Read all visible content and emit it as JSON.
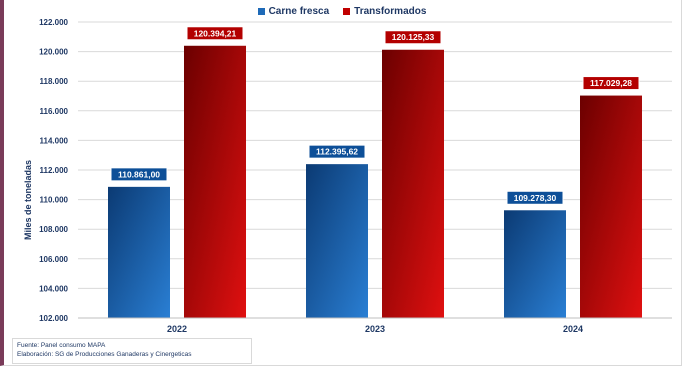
{
  "chart_data": {
    "type": "bar",
    "categories": [
      "2022",
      "2023",
      "2024"
    ],
    "series": [
      {
        "name": "Carne fresca",
        "values": [
          110861.0,
          112395.62,
          109278.3
        ],
        "labels": [
          "110.861,00",
          "112.395,62",
          "109.278,30"
        ],
        "color": "#1e6ab8"
      },
      {
        "name": "Transformados",
        "values": [
          120394.21,
          120125.33,
          117029.28
        ],
        "labels": [
          "120.394,21",
          "120.125,33",
          "117.029,28"
        ],
        "color": "#c00000"
      }
    ],
    "ylabel": "Miles de toneladas",
    "ylim": [
      102000,
      122000
    ],
    "yticks": [
      102000,
      104000,
      106000,
      108000,
      110000,
      112000,
      114000,
      116000,
      118000,
      120000,
      122000
    ],
    "ytick_labels": [
      "102.000",
      "104.000",
      "106.000",
      "108.000",
      "110.000",
      "112.000",
      "114.000",
      "116.000",
      "118.000",
      "120.000",
      "122.000"
    ],
    "grid": true,
    "legend": "top-center"
  },
  "source": {
    "line1": "Fuente:  Panel consumo MAPA",
    "line2": "Elaboración: SG de Producciones Ganaderas y Cinergeticas"
  }
}
